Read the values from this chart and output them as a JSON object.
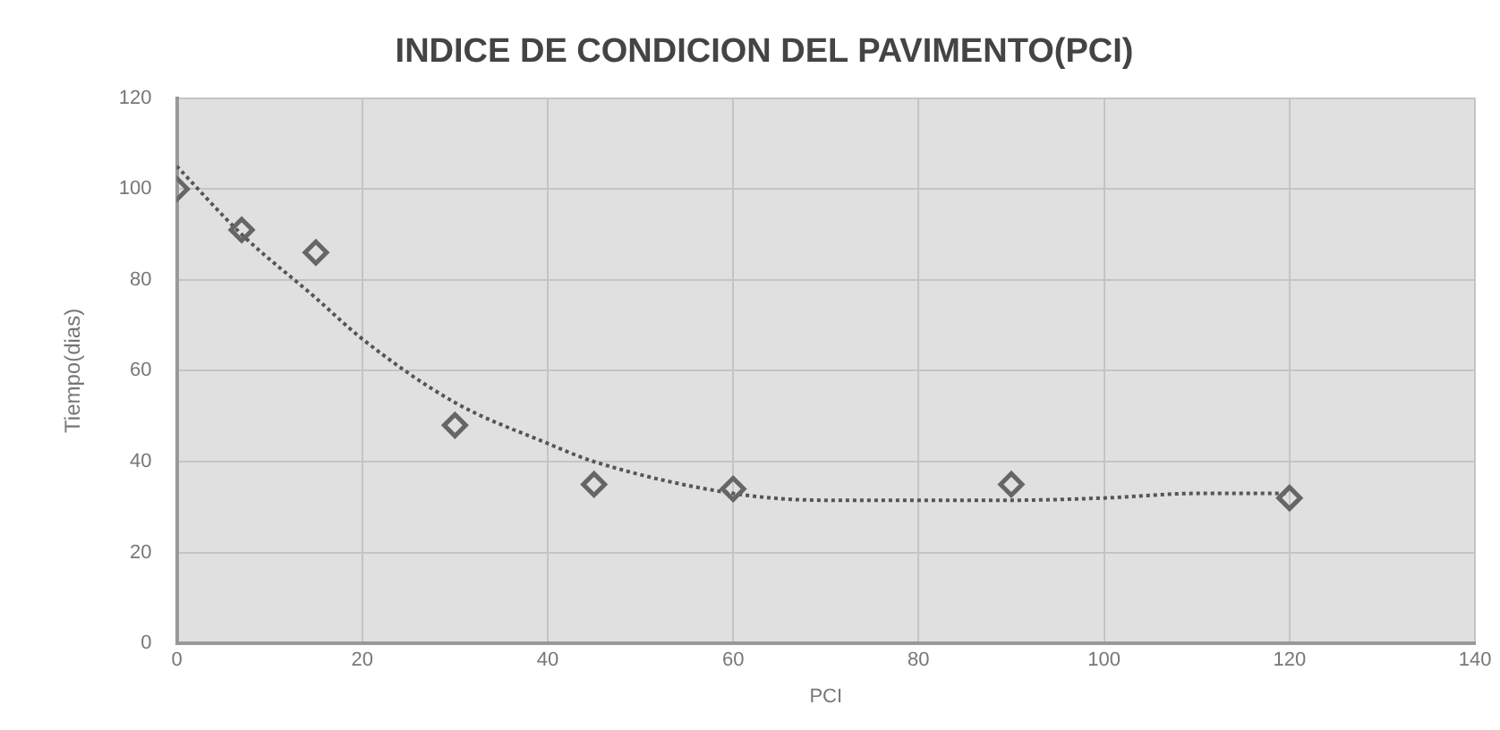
{
  "chart_data": {
    "type": "scatter",
    "title": "INDICE DE CONDICION DEL PAVIMENTO(PCI)",
    "xlabel": "PCI",
    "ylabel": "Tiempo(dias)",
    "x": [
      0,
      7,
      15,
      30,
      45,
      60,
      90,
      120
    ],
    "series": [
      {
        "color": "#666666",
        "values": [
          100,
          91,
          86,
          48,
          35,
          34,
          35,
          32
        ],
        "marker": "diamond"
      },
      {
        "type": "line",
        "color": "#555555",
        "line_style": "dotted",
        "marker": "none",
        "x": [
          0,
          7,
          15,
          20,
          30,
          40,
          45,
          60,
          70,
          80,
          90,
          100,
          110,
          120
        ],
        "values": [
          105,
          90,
          76,
          67,
          53,
          44,
          40,
          33,
          31.5,
          31.5,
          31.5,
          32,
          33,
          33
        ]
      }
    ],
    "xlim": [
      0,
      140
    ],
    "xticks": [
      0,
      20,
      40,
      60,
      80,
      100,
      120,
      140
    ],
    "ylim": [
      0,
      120
    ],
    "yticks": [
      0,
      20,
      40,
      60,
      80,
      100,
      120
    ],
    "grid": true,
    "legend": false
  }
}
